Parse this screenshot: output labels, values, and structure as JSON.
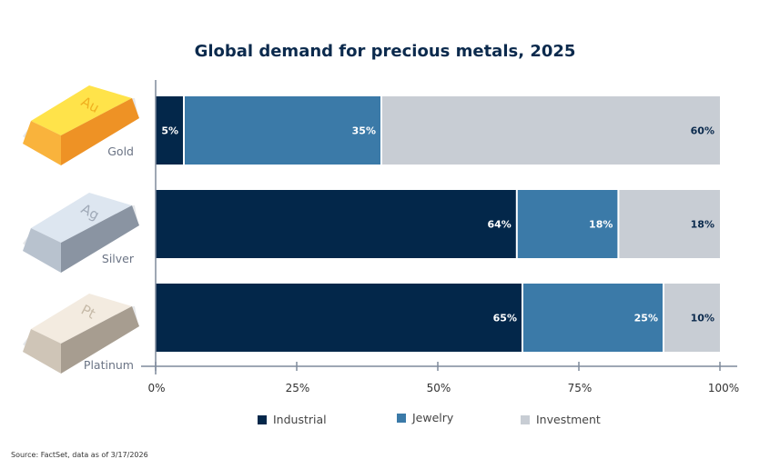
{
  "chart_data": {
    "type": "bar",
    "orientation": "horizontal",
    "stacked": true,
    "title": "Global demand for precious metals, 2025",
    "categories": [
      "Gold",
      "Silver",
      "Platinum"
    ],
    "series": [
      {
        "name": "Industrial",
        "color": "#03274a",
        "values": [
          5,
          64,
          65
        ]
      },
      {
        "name": "Jewelry",
        "color": "#3b7aa8",
        "values": [
          35,
          18,
          25
        ]
      },
      {
        "name": "Investment",
        "color": "#c8cdd4",
        "values": [
          60,
          18,
          10
        ]
      }
    ],
    "xlim": [
      0,
      100
    ],
    "xticks": [
      "0%",
      "25%",
      "50%",
      "75%",
      "100%"
    ],
    "legend": "bottom",
    "grid": false
  },
  "bar_images": {
    "Gold": "Au GOLD",
    "Silver": "Ag SILVER",
    "Platinum": "Pt PLATINUM"
  },
  "source": "Source: FactSet, data as of 3/17/2026"
}
